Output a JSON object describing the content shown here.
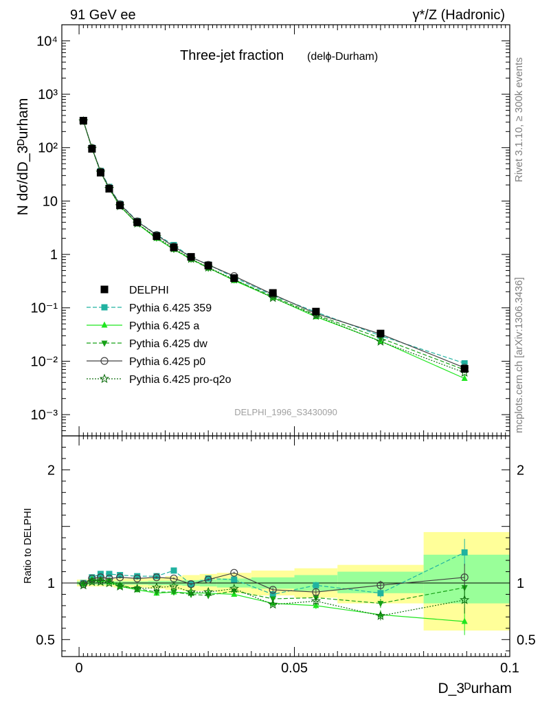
{
  "header": {
    "left": "91 GeV ee",
    "right": "γ*/Z (Hadronic)"
  },
  "side": {
    "rivet": "Rivet 3.1.10, ≥ 300k events",
    "mcplots": "mcplots.cern.ch [arXiv:1306.3436]"
  },
  "plot": {
    "title": "Three-jet fraction",
    "title_small": "(delϕ-Durham)",
    "ylabel_main": "N dσ/dD_3ᴰurham",
    "ylabel_ratio": "Ratio to DELPHI",
    "xlabel": "D_3ᴰurham",
    "analysis_id": "DELPHI_1996_S3430090"
  },
  "colors": {
    "data": "#000000",
    "p359": "#20b2a0",
    "pa": "#1ee61e",
    "pdw": "#16a016",
    "pp0": "#404040",
    "pq2o": "#0f6e0f",
    "band_yellow": "#ffff99",
    "band_green": "#99ff99"
  },
  "chart_data": {
    "type": "line",
    "x": [
      0.001,
      0.003,
      0.005,
      0.007,
      0.0095,
      0.0135,
      0.018,
      0.022,
      0.026,
      0.03,
      0.036,
      0.045,
      0.055,
      0.07,
      0.0895
    ],
    "xlim": [
      -0.004,
      0.1
    ],
    "main_ylim": [
      0.0004,
      20000
    ],
    "main_yscale": "log",
    "ratio_ylim": [
      0.35,
      2.3
    ],
    "x_ticks": [
      {
        "v": 0,
        "label": "0"
      },
      {
        "v": 0.05,
        "label": "0.05"
      },
      {
        "v": 0.1,
        "label": "0.1"
      }
    ],
    "y_ticks_main": [
      {
        "v": 0.001,
        "label": "10⁻³"
      },
      {
        "v": 0.01,
        "label": "10⁻²"
      },
      {
        "v": 0.1,
        "label": "10⁻¹"
      },
      {
        "v": 1,
        "label": "1"
      },
      {
        "v": 10,
        "label": "10"
      },
      {
        "v": 100,
        "label": "10²"
      },
      {
        "v": 1000,
        "label": "10³"
      },
      {
        "v": 10000,
        "label": "10⁴"
      }
    ],
    "y_ticks_ratio": [
      {
        "v": 0.5,
        "label": "0.5"
      },
      {
        "v": 1,
        "label": "1"
      },
      {
        "v": 2,
        "label": "2"
      }
    ],
    "data": {
      "name": "DELPHI",
      "values": [
        320,
        95,
        34,
        17,
        8.3,
        4.0,
        2.2,
        1.35,
        0.9,
        0.62,
        0.36,
        0.19,
        0.085,
        0.033,
        0.0072
      ]
    },
    "bands": [
      {
        "x0": -0.0005,
        "x1": 0.002,
        "y": [
          0.97,
          1.03
        ],
        "g": [
          0.985,
          1.015
        ]
      },
      {
        "x0": 0.002,
        "x1": 0.004,
        "y": [
          0.97,
          1.03
        ],
        "g": [
          0.985,
          1.015
        ]
      },
      {
        "x0": 0.004,
        "x1": 0.006,
        "y": [
          0.97,
          1.03
        ],
        "g": [
          0.985,
          1.015
        ]
      },
      {
        "x0": 0.006,
        "x1": 0.008,
        "y": [
          0.97,
          1.03
        ],
        "g": [
          0.985,
          1.015
        ]
      },
      {
        "x0": 0.008,
        "x1": 0.011,
        "y": [
          0.96,
          1.04
        ],
        "g": [
          0.985,
          1.015
        ]
      },
      {
        "x0": 0.011,
        "x1": 0.016,
        "y": [
          0.96,
          1.04
        ],
        "g": [
          0.985,
          1.015
        ]
      },
      {
        "x0": 0.016,
        "x1": 0.02,
        "y": [
          0.95,
          1.05
        ],
        "g": [
          0.98,
          1.02
        ]
      },
      {
        "x0": 0.02,
        "x1": 0.024,
        "y": [
          0.94,
          1.06
        ],
        "g": [
          0.98,
          1.02
        ]
      },
      {
        "x0": 0.024,
        "x1": 0.028,
        "y": [
          0.93,
          1.07
        ],
        "g": [
          0.975,
          1.025
        ]
      },
      {
        "x0": 0.028,
        "x1": 0.032,
        "y": [
          0.93,
          1.08
        ],
        "g": [
          0.97,
          1.03
        ]
      },
      {
        "x0": 0.032,
        "x1": 0.04,
        "y": [
          0.91,
          1.09
        ],
        "g": [
          0.96,
          1.04
        ]
      },
      {
        "x0": 0.04,
        "x1": 0.05,
        "y": [
          0.89,
          1.11
        ],
        "g": [
          0.95,
          1.05
        ]
      },
      {
        "x0": 0.05,
        "x1": 0.06,
        "y": [
          0.87,
          1.13
        ],
        "g": [
          0.93,
          1.07
        ]
      },
      {
        "x0": 0.06,
        "x1": 0.08,
        "y": [
          0.82,
          1.16
        ],
        "g": [
          0.91,
          1.1
        ]
      },
      {
        "x0": 0.08,
        "x1": 0.1,
        "y": [
          0.58,
          1.45
        ],
        "g": [
          0.82,
          1.25
        ]
      }
    ],
    "series": [
      {
        "name": "Pythia 6.425 359",
        "key": "p359",
        "marker": "square",
        "dash": "6,3",
        "ratio": [
          1.0,
          1.05,
          1.08,
          1.08,
          1.07,
          1.06,
          1.06,
          1.11,
          0.99,
          1.04,
          1.03,
          0.9,
          0.98,
          0.91,
          1.27
        ],
        "err": [
          0,
          0.01,
          0.01,
          0.01,
          0.01,
          0.01,
          0.01,
          0.01,
          0.01,
          0.01,
          0.01,
          0.02,
          0.03,
          0.04,
          0.12
        ]
      },
      {
        "name": "Pythia 6.425 a",
        "key": "pa",
        "marker": "tri-up",
        "dash": "",
        "ratio": [
          0.99,
          1.03,
          1.03,
          1.01,
          0.97,
          0.94,
          0.91,
          0.92,
          0.91,
          0.91,
          0.9,
          0.82,
          0.8,
          0.72,
          0.66
        ],
        "err": [
          0,
          0.01,
          0.01,
          0.01,
          0.01,
          0.01,
          0.01,
          0.01,
          0.01,
          0.01,
          0.01,
          0.02,
          0.03,
          0.04,
          0.12
        ]
      },
      {
        "name": "Pythia 6.425 dw",
        "key": "pdw",
        "marker": "tri-down",
        "dash": "6,3",
        "ratio": [
          0.99,
          1.02,
          1.03,
          1.02,
          0.98,
          0.95,
          0.92,
          0.92,
          0.9,
          0.89,
          0.93,
          0.86,
          0.87,
          0.82,
          0.96
        ],
        "err": [
          0,
          0.01,
          0.01,
          0.01,
          0.01,
          0.01,
          0.01,
          0.01,
          0.01,
          0.01,
          0.01,
          0.02,
          0.03,
          0.04,
          0.12
        ]
      },
      {
        "name": "Pythia 6.425 p0",
        "key": "pp0",
        "marker": "circle",
        "dash": "",
        "ratio": [
          0.99,
          1.04,
          1.05,
          1.04,
          1.05,
          1.04,
          1.05,
          1.04,
          0.99,
          1.03,
          1.09,
          0.94,
          0.92,
          0.98,
          1.05
        ],
        "err": [
          0,
          0.01,
          0.01,
          0.01,
          0.01,
          0.01,
          0.01,
          0.01,
          0.01,
          0.01,
          0.01,
          0.02,
          0.03,
          0.04,
          0.12
        ]
      },
      {
        "name": "Pythia 6.425 pro-q2o",
        "key": "pq2o",
        "marker": "star",
        "dash": "2,2",
        "ratio": [
          0.98,
          1.01,
          1.01,
          1.0,
          0.97,
          0.95,
          0.96,
          0.97,
          0.92,
          0.92,
          0.95,
          0.81,
          0.84,
          0.71,
          0.85
        ],
        "err": [
          0,
          0.01,
          0.01,
          0.01,
          0.01,
          0.01,
          0.01,
          0.01,
          0.01,
          0.01,
          0.01,
          0.02,
          0.03,
          0.04,
          0.12
        ]
      }
    ]
  }
}
